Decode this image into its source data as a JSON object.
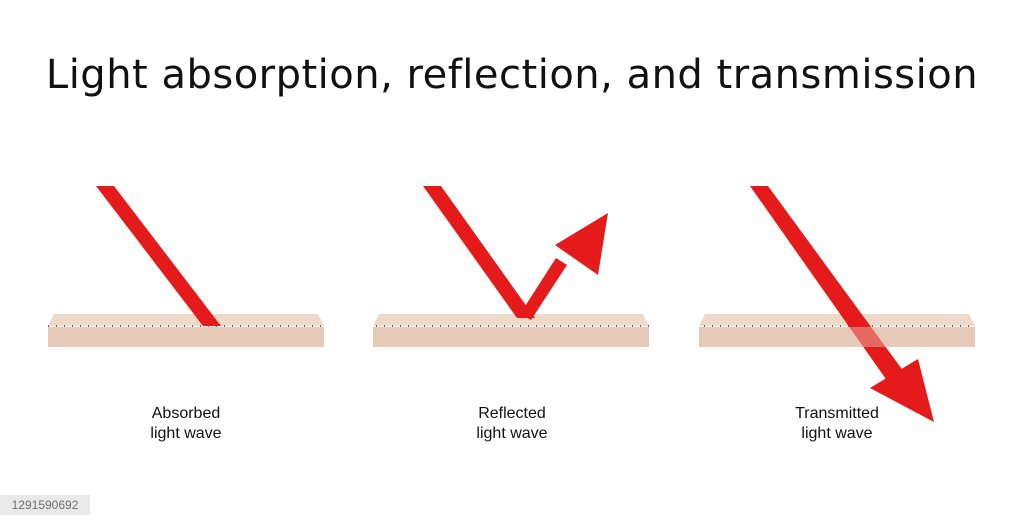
{
  "title": "Light absorption, reflection, and transmission",
  "captions": {
    "absorbed": [
      "Absorbed",
      "light wave"
    ],
    "reflected": [
      "Reflected",
      "light wave"
    ],
    "transmitted": [
      "Transmitted",
      "light wave"
    ]
  },
  "watermark": {
    "image_id": "1291590692"
  },
  "colors": {
    "ray": "#e51a1a",
    "surface": "#e7c9b7",
    "surface_edge": "#8a7a6d"
  }
}
